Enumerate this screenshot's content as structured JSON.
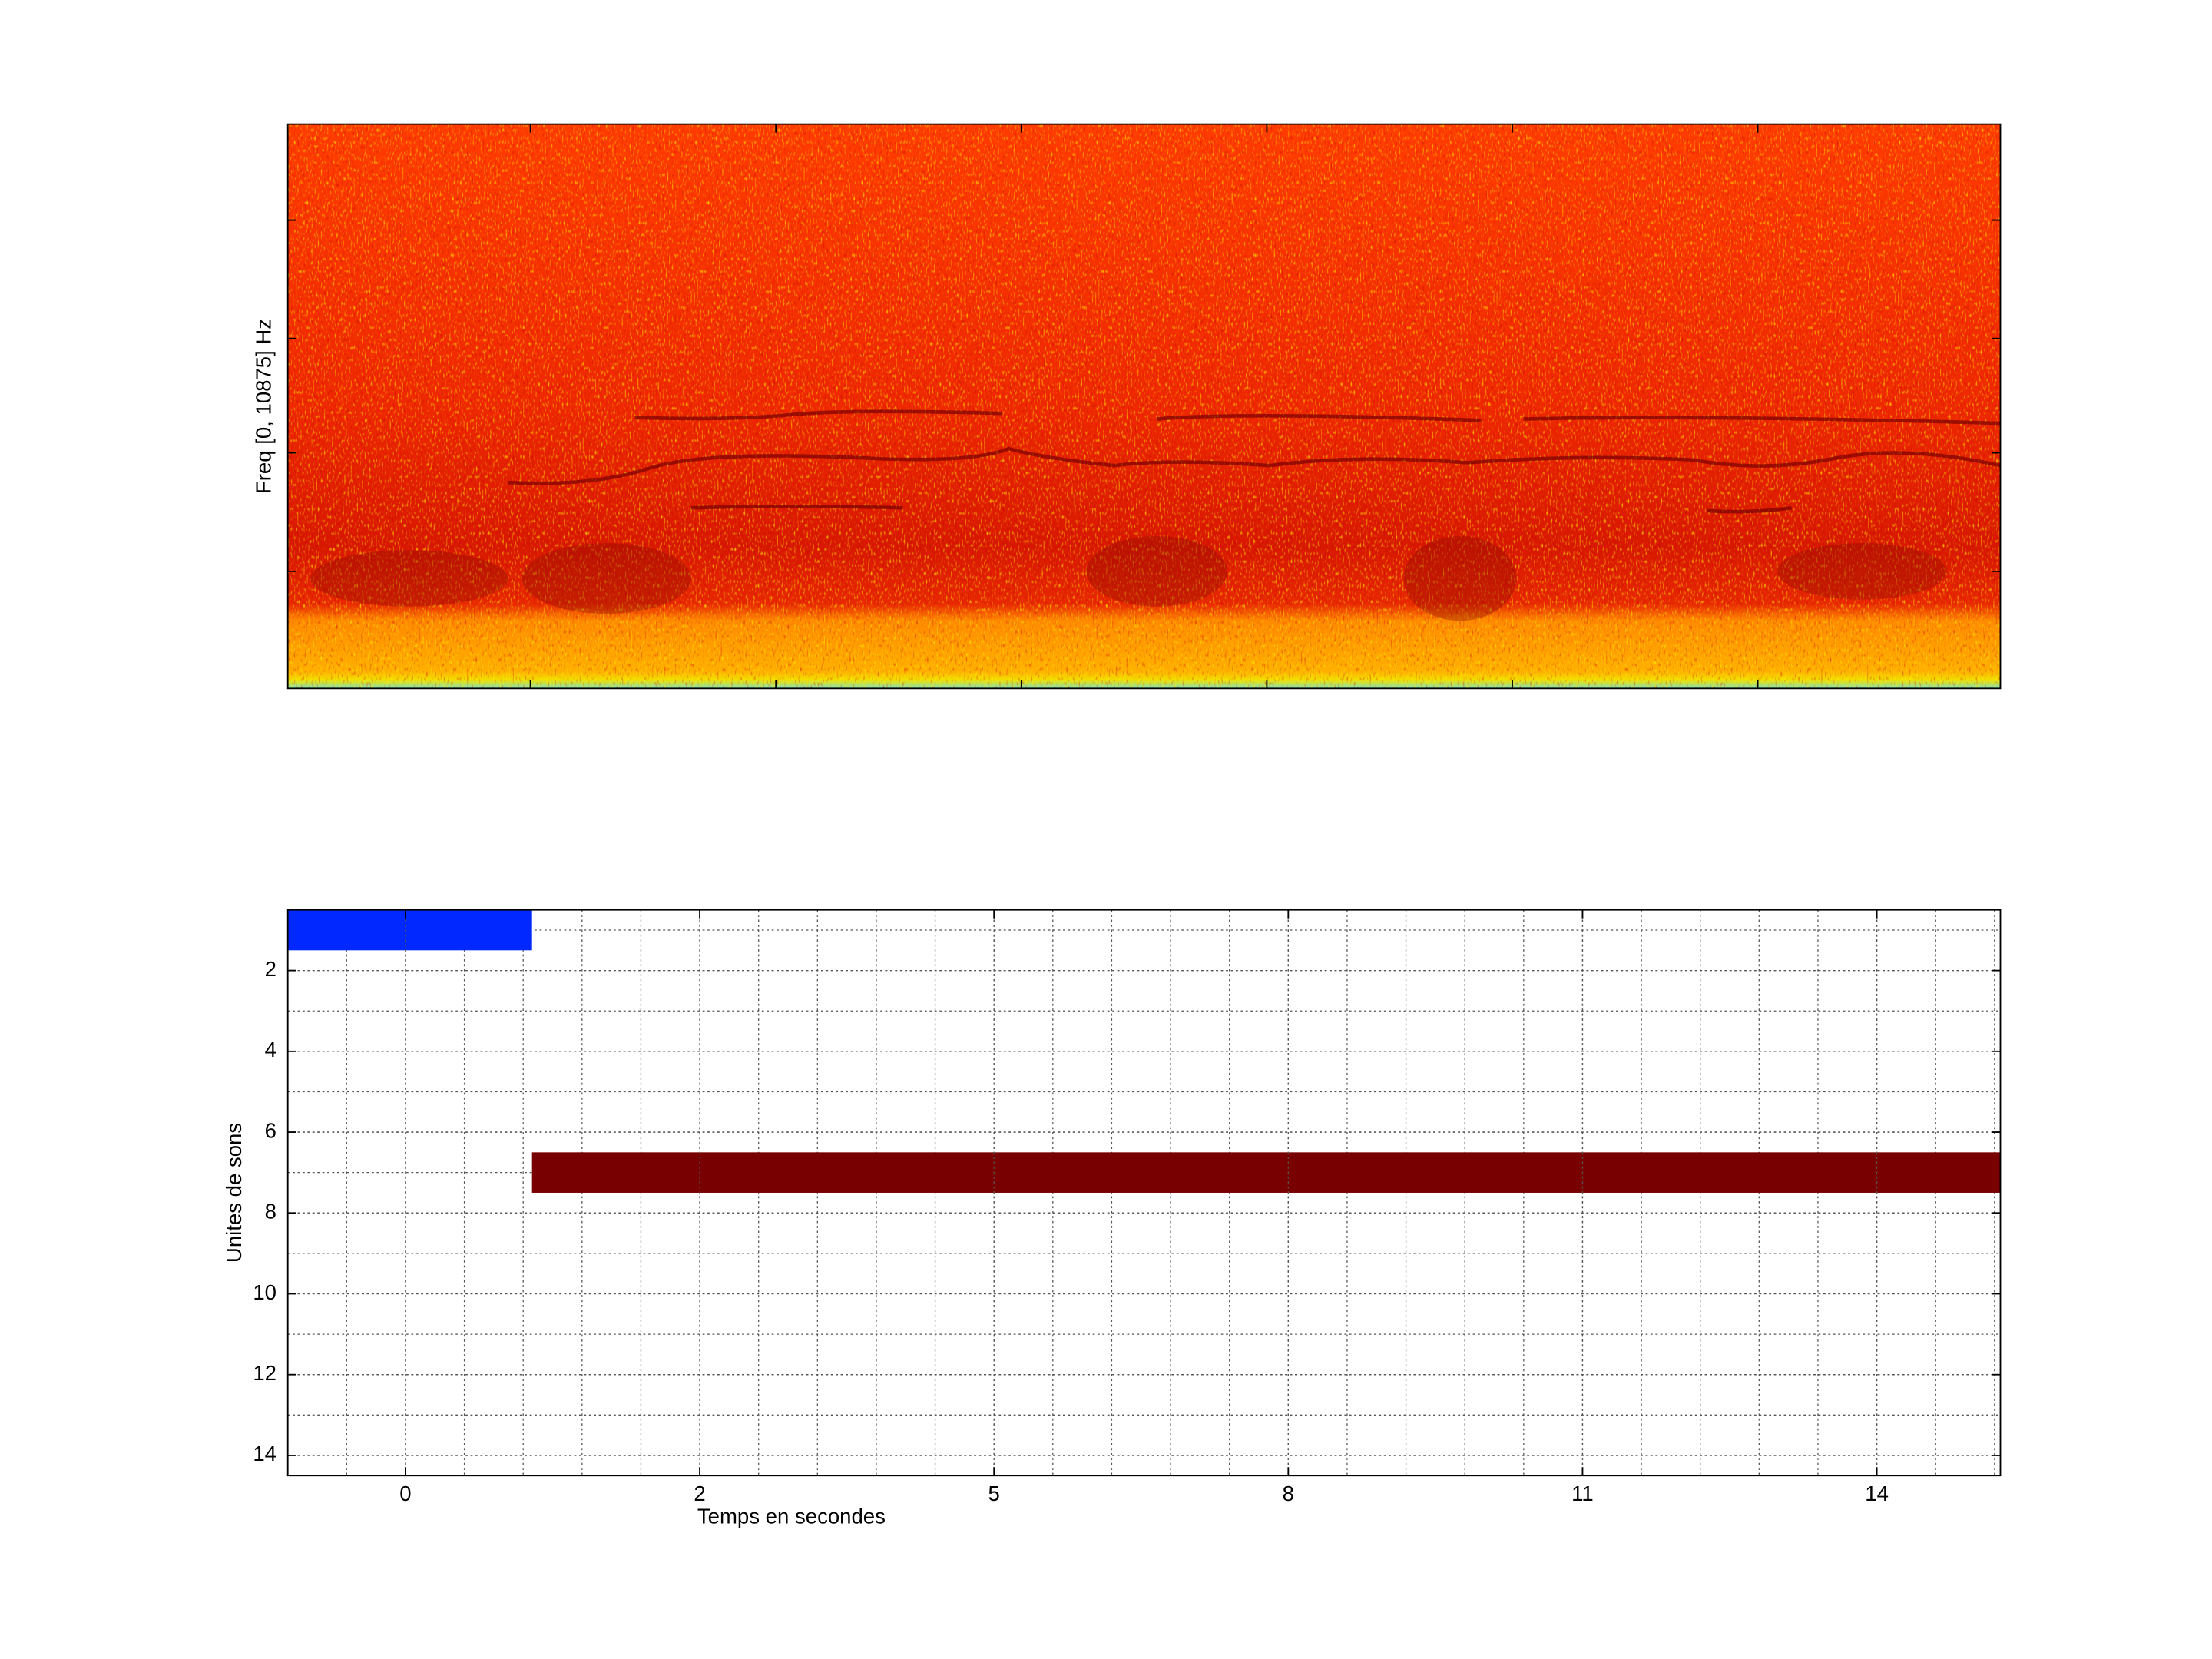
{
  "chart_data": [
    {
      "type": "spectrogram",
      "ylabel": "Freq [0, 10875] Hz"
    },
    {
      "type": "timeline",
      "xlabel": "Temps en secondes",
      "ylabel": "Unites de sons",
      "xlim": [
        0,
        29.1
      ],
      "xticks": [
        {
          "value": 2,
          "label": "0"
        },
        {
          "value": 7,
          "label": "2"
        },
        {
          "value": 12,
          "label": "5"
        },
        {
          "value": 17,
          "label": "8"
        },
        {
          "value": 22,
          "label": "11"
        },
        {
          "value": 27,
          "label": "14"
        }
      ],
      "ylim": [
        0.5,
        14.5
      ],
      "y_reversed": true,
      "yticks": [
        2,
        4,
        6,
        8,
        10,
        12,
        14
      ],
      "grid": true,
      "minor_grid": true,
      "bars": [
        {
          "row": 1,
          "start": 0,
          "end": 4.15,
          "color": "#0028ff"
        },
        {
          "row": 7,
          "start": 4.15,
          "end": 29.1,
          "color": "#780000"
        }
      ]
    }
  ]
}
